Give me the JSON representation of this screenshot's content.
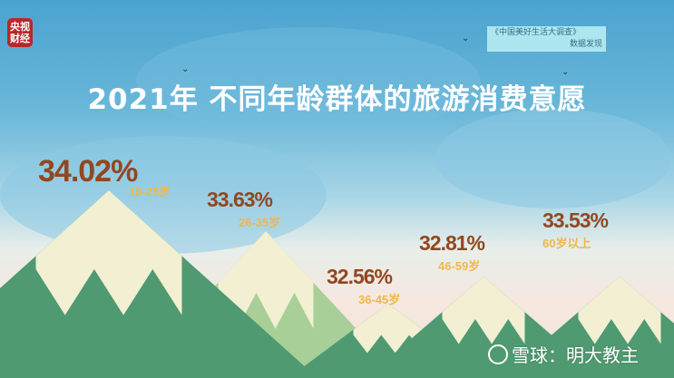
{
  "logo": {
    "line1": "央视",
    "line2": "财经"
  },
  "source": {
    "line1": "《中国美好生活大调查》",
    "line2": "数据发现"
  },
  "title": "2021年 不同年龄群体的旅游消费意愿",
  "watermark": {
    "text": "雪球：明大教主",
    "icon": "xueqiu-logo-icon"
  },
  "colors": {
    "value_text": "#92471f",
    "age_text": "#f0b848",
    "mountain_dark": "#4f9a70",
    "mountain_light": "#a8cf98",
    "snow": "#f2efd2"
  },
  "chart_data": {
    "type": "bar",
    "title": "2021年 不同年龄群体的旅游消费意愿",
    "categories": [
      "18-25岁",
      "26-35岁",
      "36-45岁",
      "46-59岁",
      "60岁以上"
    ],
    "values": [
      34.02,
      33.63,
      32.56,
      32.81,
      33.53
    ],
    "value_labels": [
      "34.02%",
      "33.63%",
      "32.56%",
      "32.81%",
      "33.53%"
    ],
    "unit": "%"
  }
}
